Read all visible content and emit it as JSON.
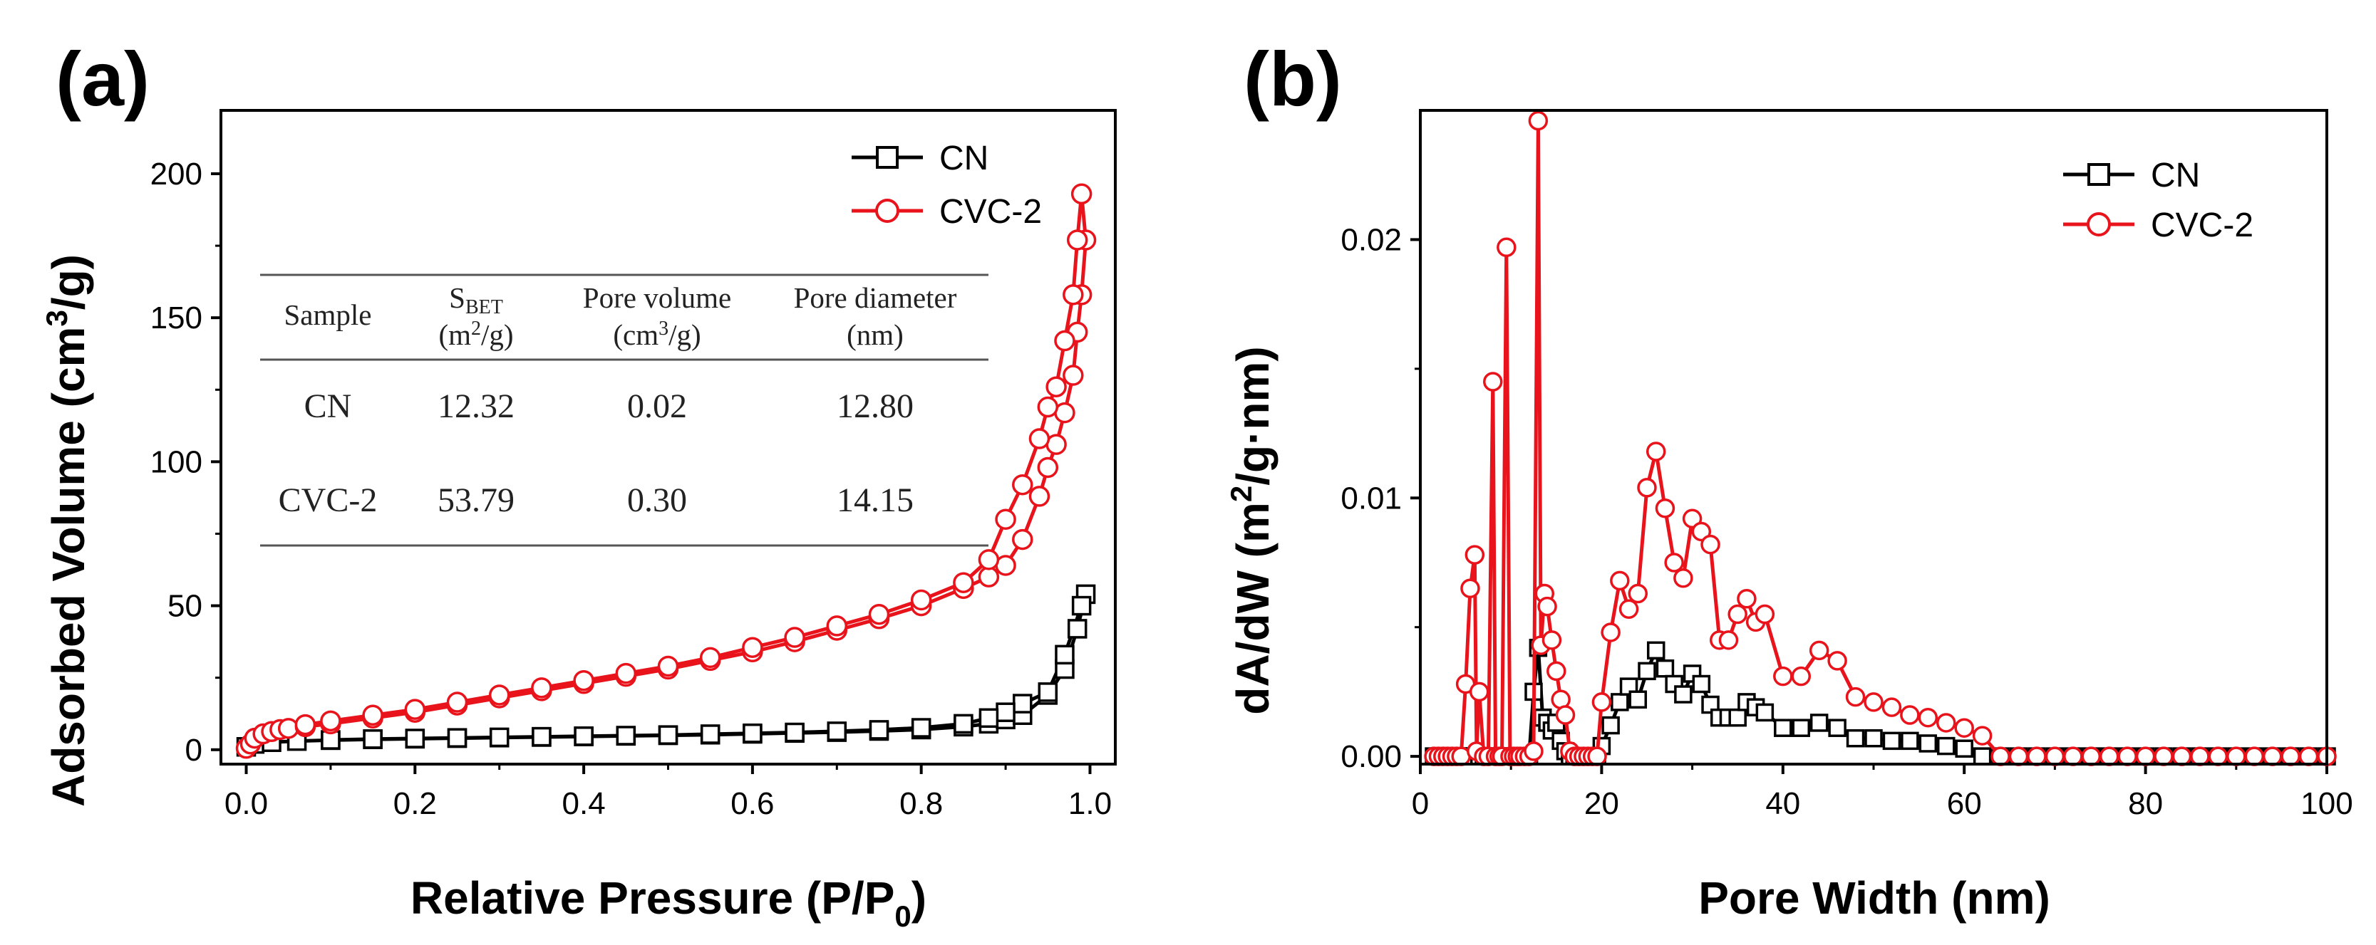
{
  "colors": {
    "cn": "#000000",
    "cvc": "#e8131b",
    "axis": "#000000",
    "table_rule": "#555555"
  },
  "chart_data": [
    {
      "id": "a",
      "panel_label": "(a)",
      "type": "line",
      "title": "",
      "xlabel": "Relative Pressure (P/P0)",
      "xlabel_main": "Relative Pressure (P/P",
      "xlabel_sub": "0",
      "xlabel_end": ")",
      "ylabel": "Adsorbed Volume (cm3/g)",
      "ylabel_main": "Adsorbed Volume (cm",
      "ylabel_sup": "3",
      "ylabel_end": "/g)",
      "xlim": [
        -0.03,
        1.03
      ],
      "ylim": [
        -5,
        222
      ],
      "xticks": [
        0.0,
        0.2,
        0.4,
        0.6,
        0.8,
        1.0
      ],
      "xtick_labels": [
        "0.0",
        "0.2",
        "0.4",
        "0.6",
        "0.8",
        "1.0"
      ],
      "yticks": [
        0,
        50,
        100,
        150,
        200
      ],
      "ytick_labels": [
        "0",
        "50",
        "100",
        "150",
        "200"
      ],
      "legend": [
        "CN",
        "CVC-2"
      ],
      "legend_position": "top-right",
      "series": [
        {
          "name": "CN",
          "marker": "square",
          "x": [
            0.0,
            0.01,
            0.03,
            0.06,
            0.1,
            0.15,
            0.2,
            0.25,
            0.3,
            0.35,
            0.4,
            0.45,
            0.5,
            0.55,
            0.6,
            0.65,
            0.7,
            0.75,
            0.8,
            0.85,
            0.88,
            0.9,
            0.92,
            0.95,
            0.97,
            0.985,
            0.995,
            0.99,
            0.97,
            0.95,
            0.92,
            0.9,
            0.88,
            0.85,
            0.8,
            0.75,
            0.7,
            0.65,
            0.6,
            0.55,
            0.5,
            0.45,
            0.4,
            0.35,
            0.3,
            0.25,
            0.2,
            0.15,
            0.1
          ],
          "y": [
            1.0,
            2.0,
            2.6,
            3.0,
            3.3,
            3.6,
            3.8,
            4.0,
            4.2,
            4.4,
            4.6,
            4.8,
            5.0,
            5.2,
            5.5,
            5.8,
            6.1,
            6.5,
            7.0,
            8.0,
            9.0,
            10.5,
            12.0,
            19.0,
            28.0,
            42.0,
            54.0,
            50.0,
            33.0,
            20.0,
            16.0,
            13.0,
            11.0,
            9.0,
            7.6,
            6.9,
            6.4,
            6.0,
            5.7,
            5.4,
            5.1,
            4.9,
            4.7,
            4.5,
            4.3,
            4.1,
            3.9,
            3.7,
            3.4
          ]
        },
        {
          "name": "CVC-2",
          "marker": "circle",
          "x": [
            0.0,
            0.005,
            0.01,
            0.02,
            0.03,
            0.04,
            0.05,
            0.07,
            0.1,
            0.15,
            0.2,
            0.25,
            0.3,
            0.35,
            0.4,
            0.45,
            0.5,
            0.55,
            0.6,
            0.65,
            0.7,
            0.75,
            0.8,
            0.85,
            0.88,
            0.9,
            0.92,
            0.94,
            0.95,
            0.96,
            0.97,
            0.98,
            0.985,
            0.99,
            0.995,
            0.99,
            0.985,
            0.98,
            0.97,
            0.96,
            0.95,
            0.94,
            0.92,
            0.9,
            0.88,
            0.85,
            0.8,
            0.75,
            0.7,
            0.65,
            0.6,
            0.55,
            0.5,
            0.45,
            0.4,
            0.35,
            0.3,
            0.25,
            0.2,
            0.15,
            0.1,
            0.07
          ],
          "y": [
            0.5,
            2.0,
            4.0,
            5.5,
            6.3,
            7.0,
            7.4,
            8.0,
            9.0,
            11.0,
            13.0,
            15.5,
            18.0,
            20.5,
            23.0,
            25.5,
            28.0,
            31.0,
            34.0,
            37.5,
            41.5,
            45.5,
            50.0,
            56.0,
            60.0,
            64.0,
            73.0,
            88.0,
            98.0,
            106.0,
            117.0,
            130.0,
            145.0,
            158.0,
            177.0,
            193.0,
            177.0,
            158.0,
            142.0,
            126.0,
            119.0,
            108.0,
            92.0,
            80.0,
            66.0,
            58.0,
            52.0,
            47.0,
            43.0,
            39.0,
            35.5,
            32.0,
            29.0,
            26.5,
            24.0,
            21.5,
            19.0,
            16.5,
            14.0,
            12.0,
            10.0,
            8.7
          ]
        }
      ],
      "table": {
        "headers": [
          {
            "main": "Sample",
            "sub": "",
            "sup": "",
            "end": "",
            "line2": ""
          },
          {
            "main": "S",
            "sub": "BET",
            "sup": "",
            "end": "",
            "line2_main": "(m",
            "line2_sup": "2",
            "line2_end": "/g)"
          },
          {
            "main": "Pore volume",
            "sub": "",
            "sup": "",
            "end": "",
            "line2_main": "(cm",
            "line2_sup": "3",
            "line2_end": "/g)"
          },
          {
            "main": "Pore diameter",
            "sub": "",
            "sup": "",
            "end": "",
            "line2_main": "(nm)",
            "line2_sup": "",
            "line2_end": ""
          }
        ],
        "rows": [
          [
            "CN",
            "12.32",
            "0.02",
            "12.80"
          ],
          [
            "CVC-2",
            "53.79",
            "0.30",
            "14.15"
          ]
        ]
      }
    },
    {
      "id": "b",
      "panel_label": "(b)",
      "type": "line",
      "title": "",
      "xlabel": "Pore Width (nm)",
      "ylabel": "dA/dW (m2/g.nm)",
      "ylabel_main": "dA/dW (m",
      "ylabel_sup": "2",
      "ylabel_end": "/g·nm)",
      "xlim": [
        0,
        100
      ],
      "ylim": [
        -0.0003,
        0.025
      ],
      "xticks": [
        0,
        20,
        40,
        60,
        80,
        100
      ],
      "xtick_labels": [
        "0",
        "20",
        "40",
        "60",
        "80",
        "100"
      ],
      "yticks": [
        0.0,
        0.01,
        0.02
      ],
      "ytick_labels": [
        "0.00",
        "0.01",
        "0.02"
      ],
      "legend": [
        "CN",
        "CVC-2"
      ],
      "legend_position": "top-right",
      "series": [
        {
          "name": "CN",
          "marker": "square",
          "x": [
            1.5,
            2,
            2.5,
            3,
            3.5,
            4,
            4.5,
            5,
            5.5,
            6,
            6.5,
            7,
            7.5,
            8,
            8.5,
            9,
            9.5,
            10,
            10.5,
            11,
            11.5,
            12,
            12.5,
            13,
            13.5,
            14,
            14.5,
            15,
            15.5,
            16,
            16.5,
            17,
            17.5,
            18,
            18.5,
            19,
            19.5,
            20,
            21,
            22,
            23,
            24,
            25,
            26,
            27,
            28,
            29,
            30,
            31,
            32,
            33,
            34,
            35,
            36,
            37,
            38,
            40,
            42,
            44,
            46,
            48,
            50,
            52,
            54,
            56,
            58,
            60,
            62,
            64,
            66,
            68,
            70,
            72,
            74,
            76,
            78,
            80,
            82,
            84,
            86,
            88,
            90,
            92,
            94,
            96,
            98,
            100
          ],
          "y": [
            0,
            0,
            0,
            0,
            0,
            0,
            0,
            0,
            0,
            0,
            0,
            0,
            0,
            0,
            0,
            0,
            0,
            0,
            0,
            0,
            0,
            0,
            0.0025,
            0.0042,
            0.0015,
            0.0013,
            0.001,
            0.0013,
            0.0006,
            0.0002,
            0,
            0,
            0,
            0,
            0,
            0,
            0,
            0.0004,
            0.0012,
            0.0021,
            0.0027,
            0.0022,
            0.0033,
            0.0041,
            0.0034,
            0.0028,
            0.0024,
            0.0032,
            0.0028,
            0.002,
            0.0015,
            0.0015,
            0.0015,
            0.0021,
            0.0019,
            0.0017,
            0.0011,
            0.0011,
            0.0013,
            0.0011,
            0.0007,
            0.0007,
            0.0006,
            0.0006,
            0.0005,
            0.0004,
            0.0003,
            0,
            0,
            0,
            0,
            0,
            0,
            0,
            0,
            0,
            0,
            0,
            0,
            0,
            0,
            0,
            0,
            0,
            0,
            0,
            0
          ]
        },
        {
          "name": "CVC-2",
          "marker": "circle",
          "x": [
            1.5,
            2,
            2.5,
            3,
            3.5,
            4,
            4.5,
            5,
            5.5,
            6,
            6.2,
            6.5,
            7,
            7.5,
            8,
            8.3,
            8.7,
            9,
            9.5,
            9.9,
            10.3,
            10.7,
            11,
            11.5,
            12,
            12.5,
            13,
            13.3,
            13.7,
            14,
            14.5,
            15,
            15.5,
            16,
            16.5,
            17,
            17.5,
            18,
            18.5,
            19,
            19.5,
            20,
            21,
            22,
            23,
            24,
            25,
            26,
            27,
            28,
            29,
            30,
            31,
            32,
            33,
            34,
            35,
            36,
            37,
            38,
            40,
            42,
            44,
            46,
            48,
            50,
            52,
            54,
            56,
            58,
            60,
            62,
            64,
            66,
            68,
            70,
            72,
            74,
            76,
            78,
            80,
            82,
            84,
            86,
            88,
            90,
            92,
            94,
            96,
            98,
            100
          ],
          "y": [
            0,
            0,
            0,
            0,
            0,
            0,
            0,
            0.0028,
            0.0065,
            0.0078,
            0.0002,
            0.0025,
            0,
            0,
            0.0145,
            0,
            0,
            0,
            0.0197,
            0,
            0,
            0,
            0,
            0,
            0,
            0.0002,
            0.0246,
            0.0043,
            0.0063,
            0.0058,
            0.0045,
            0.0033,
            0.0022,
            0.0016,
            0.0002,
            0,
            0,
            0,
            0,
            0,
            0,
            0.0021,
            0.0048,
            0.0068,
            0.0057,
            0.0063,
            0.0104,
            0.0118,
            0.0096,
            0.0075,
            0.0069,
            0.0092,
            0.0087,
            0.0082,
            0.0045,
            0.0045,
            0.0055,
            0.0061,
            0.0052,
            0.0055,
            0.0031,
            0.0031,
            0.0041,
            0.0037,
            0.0023,
            0.0021,
            0.0019,
            0.0016,
            0.0015,
            0.0013,
            0.0011,
            0.0008,
            0,
            0,
            0,
            0,
            0,
            0,
            0,
            0,
            0,
            0,
            0,
            0,
            0,
            0,
            0,
            0,
            0,
            0,
            0
          ]
        }
      ]
    }
  ]
}
